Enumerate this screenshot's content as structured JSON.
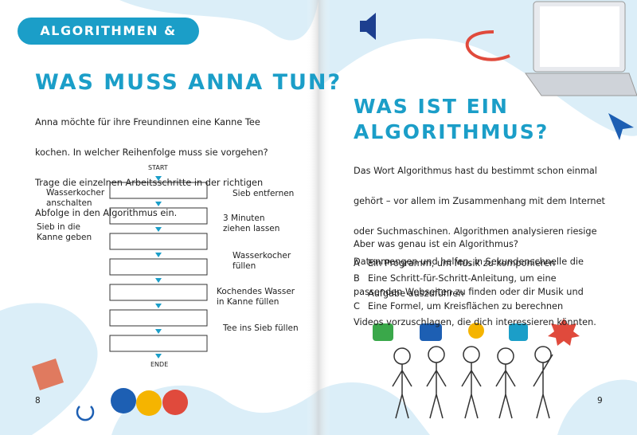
{
  "left": {
    "section_label": "ALGORITHMEN & LOGIK",
    "title": "WAS MUSS ANNA TUN?",
    "intro": [
      "Anna möchte für ihre Freundinnen eine Kanne Tee",
      "kochen. In welcher Reihenfolge muss sie vorgehen?",
      "Trage die einzelnen Arbeitsschritte in der richtigen",
      "Abfolge in den Algorithmus ein."
    ],
    "flow_start": "START",
    "flow_end": "ENDE",
    "steps": [
      "Wasserkocher\nanschalten",
      "Sieb in die\nKanne geben",
      "Sieb entfernen",
      "3 Minuten\nziehen lassen",
      "Wasserkocher\nfüllen",
      "Kochendes Wasser\nin Kanne füllen",
      "Tee ins Sieb füllen"
    ],
    "page_number": "8"
  },
  "right": {
    "title": [
      "WAS IST EIN",
      "ALGORITHMUS?"
    ],
    "paragraph": [
      "Das Wort Algorithmus hast du bestimmt schon einmal",
      "gehört – vor allem im Zusammenhang mit dem Internet",
      "oder Suchmaschinen. Algorithmen analysieren riesige",
      "Datenmengen und helfen, in Sekundenschnelle die",
      "passenden Webseiten zu finden oder dir Musik und",
      "Videos vorzuschlagen, die dich interessieren könnten."
    ],
    "question": "Aber was genau ist ein Algorithmus?",
    "options": [
      {
        "letter": "A",
        "text": "Ein Programm, um Musik zu komponieren"
      },
      {
        "letter": "B",
        "text": "Eine Schritt-für-Schritt-Anleitung, um eine\nAufgabe auszuführen"
      },
      {
        "letter": "C",
        "text": "Eine Formel, um Kreisflächen zu berechnen"
      }
    ],
    "page_number": "9"
  }
}
